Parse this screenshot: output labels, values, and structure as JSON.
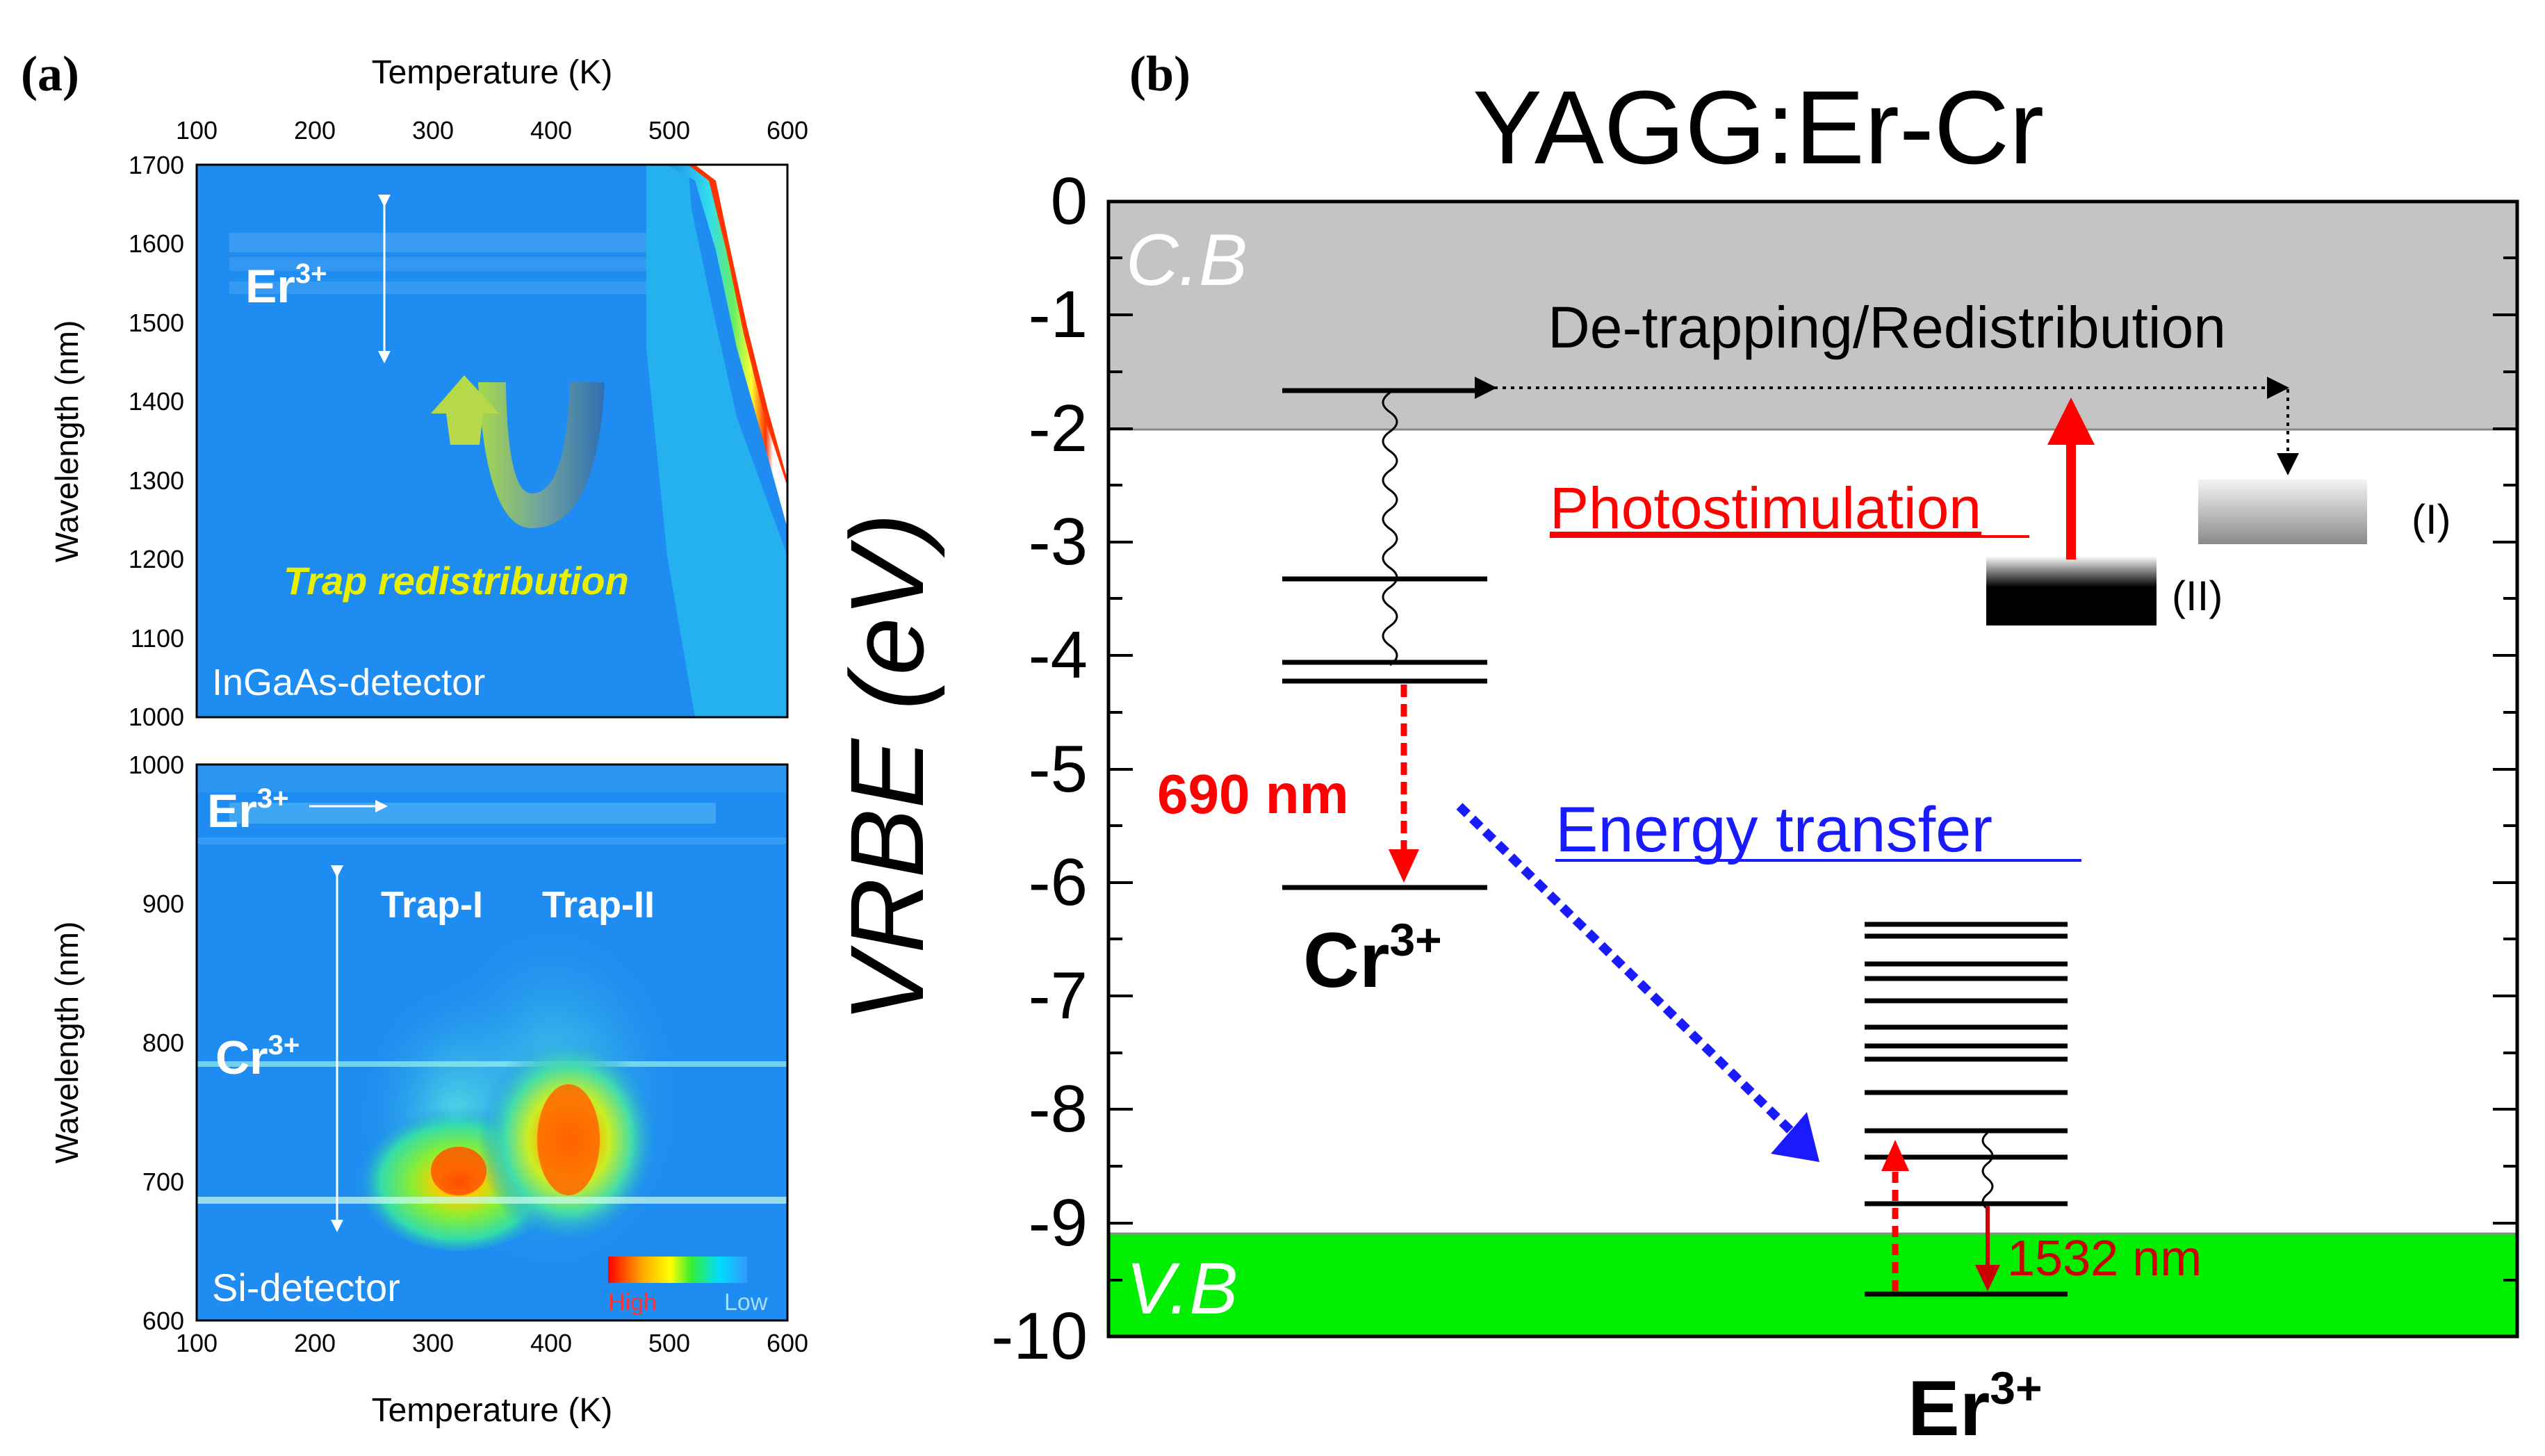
{
  "panel_a": {
    "label": "(a)",
    "top_plot": {
      "top_axis_title": "Temperature (K)",
      "x_ticks": [
        "100",
        "200",
        "300",
        "400",
        "500",
        "600"
      ],
      "y_title": "Wavelength (nm)",
      "y_ticks": [
        "1700",
        "1600",
        "1500",
        "1400",
        "1300",
        "1200",
        "1100",
        "1000"
      ],
      "er_label": "Er",
      "er_sup": "3+",
      "trap_text": "Trap redistribution",
      "detector": "InGaAs-detector"
    },
    "bottom_plot": {
      "x_title": "Temperature (K)",
      "x_ticks": [
        "100",
        "200",
        "300",
        "400",
        "500",
        "600"
      ],
      "y_title": "Wavelength (nm)",
      "y_ticks": [
        "1000",
        "900",
        "800",
        "700",
        "600"
      ],
      "er_label": "Er",
      "er_sup": "3+",
      "trap1": "Trap-I",
      "trap2": "Trap-II",
      "cr_label": "Cr",
      "cr_sup": "3+",
      "detector": "Si-detector",
      "legend_high": "High",
      "legend_low": "Low"
    }
  },
  "panel_b": {
    "label": "(b)",
    "title": "YAGG:Er-Cr",
    "y_title": "VRBE (eV)",
    "y_ticks": [
      "0",
      "-1",
      "-2",
      "-3",
      "-4",
      "-5",
      "-6",
      "-7",
      "-8",
      "-9",
      "-10"
    ],
    "cb": "C.B",
    "vb": "V.B",
    "detrap": "De-trapping/Redistribution",
    "photostim": "Photostimulation",
    "trap_I": "(I)",
    "trap_II": "(II)",
    "nm690": "690 nm",
    "energy_transfer": "Energy transfer",
    "nm1532": "1532 nm",
    "cr_label": "Cr",
    "cr_sup": "3+",
    "er_label": "Er",
    "er_sup": "3+"
  },
  "colors": {
    "cb_gray": "#c4c4c4",
    "vb_green": "#00ee00",
    "red": "#ff0000",
    "blue": "#1a1aff",
    "map_bg": "#1e8cf0"
  }
}
